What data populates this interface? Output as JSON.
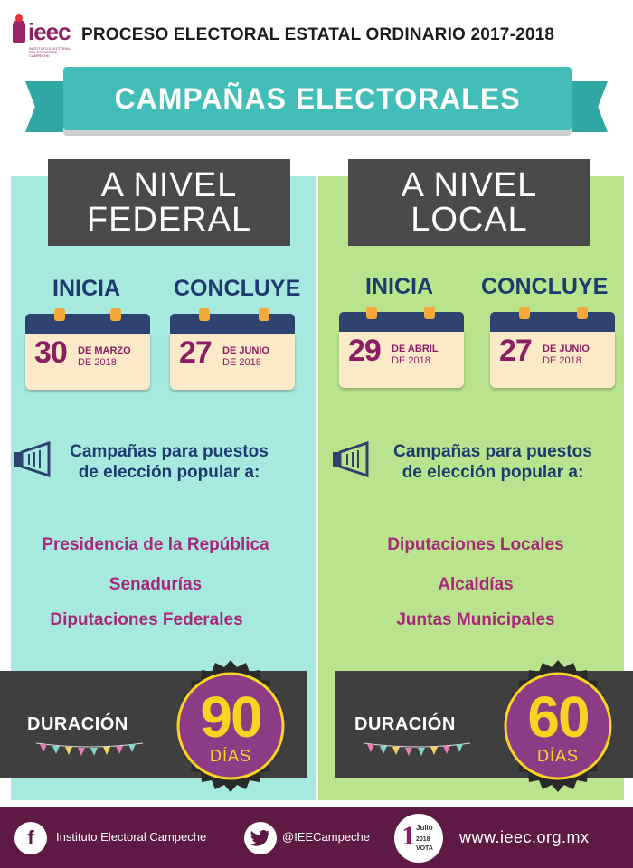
{
  "header": {
    "logo_text": "ieec",
    "logo_subtext": "INSTITUTO ELECTORAL DEL ESTADO DE CAMPECHE",
    "title": "PROCESO ELECTORAL ESTATAL ORDINARIO 2017-2018"
  },
  "banner": {
    "title": "CAMPAÑAS ELECTORALES"
  },
  "federal": {
    "level_line1": "A NIVEL",
    "level_line2": "FEDERAL",
    "start_label": "INICIA",
    "end_label": "CONCLUYE",
    "start": {
      "day": "30",
      "month": "DE MARZO",
      "year": "DE 2018"
    },
    "end": {
      "day": "27",
      "month": "DE JUNIO",
      "year": "DE 2018"
    },
    "campaign_line1": "Campañas para puestos",
    "campaign_line2": "de elección popular a:",
    "offices": [
      "Presidencia de la República",
      "Senadurías",
      "Diputaciones Federales"
    ],
    "duration_label": "DURACIÓN",
    "duration_value": "90",
    "duration_unit": "DÍAS"
  },
  "local": {
    "level_line1": "A NIVEL",
    "level_line2": "LOCAL",
    "start_label": "INICIA",
    "end_label": "CONCLUYE",
    "start": {
      "day": "29",
      "month": "DE ABRIL",
      "year": "DE 2018"
    },
    "end": {
      "day": "27",
      "month": "DE JUNIO",
      "year": "DE 2018"
    },
    "campaign_line1": "Campañas para puestos",
    "campaign_line2": "de elección popular a:",
    "offices": [
      "Diputaciones Locales",
      "Alcaldías",
      "Juntas Municipales"
    ],
    "duration_label": "DURACIÓN",
    "duration_value": "60",
    "duration_unit": "DÍAS"
  },
  "footer": {
    "facebook_icon": "f",
    "facebook_name": "Instituto Electoral Campeche",
    "twitter_handle": "@IEECampeche",
    "vote_badge": {
      "number": "1",
      "month": "Julio",
      "year": "2018",
      "word": "VOTA"
    },
    "website": "www.ieec.org.mx"
  },
  "colors": {
    "teal": "#42bdb8",
    "federal_panel": "#a5e9df",
    "local_panel": "#b9e48d",
    "dark": "#4a4a4a",
    "magenta": "#a8287a",
    "navy": "#1f3a6e",
    "footer": "#5e1a45",
    "yellow": "#f7d322"
  }
}
